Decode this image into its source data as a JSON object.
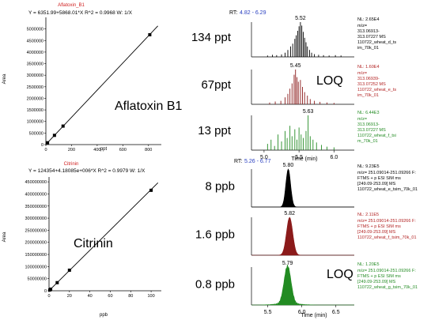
{
  "chart_data": [
    {
      "type": "scatter",
      "compound_label": "Aflatoxin B1",
      "title": "Aflatoxin_B1",
      "equation": "Y = 6351.99+5868.01*X   R^2 = 0.9968   W: 1/X",
      "xlabel": "ppt",
      "ylabel": "Area",
      "xlim": [
        0,
        900
      ],
      "ylim": [
        0,
        5500000
      ],
      "xticks": [
        "0",
        "200",
        "400",
        "600",
        "800"
      ],
      "yticks": [
        "0",
        "500000",
        "1000000",
        "1500000",
        "2000000",
        "2500000",
        "3000000",
        "3500000",
        "4000000",
        "4500000",
        "5000000"
      ],
      "points": [
        {
          "x": 13,
          "y": 80000
        },
        {
          "x": 67,
          "y": 400000
        },
        {
          "x": 134,
          "y": 800000
        },
        {
          "x": 810,
          "y": 4750000
        }
      ],
      "fit": {
        "intercept": 6351.99,
        "slope": 5868.01
      }
    },
    {
      "type": "scatter",
      "compound_label": "Citrinin",
      "title": "Citrinin",
      "equation": "Y = 124354+4.18085e+006*X   R^2 = 0.9979   W: 1/X",
      "xlabel": "ppb",
      "ylabel": "Area",
      "xlim": [
        0,
        110
      ],
      "ylim": [
        0,
        470000000
      ],
      "xticks": [
        "0",
        "20",
        "40",
        "60",
        "80",
        "100"
      ],
      "yticks": [
        "0",
        "50000000",
        "100000000",
        "150000000",
        "200000000",
        "250000000",
        "300000000",
        "350000000",
        "400000000",
        "450000000"
      ],
      "points": [
        {
          "x": 0.8,
          "y": 3300000
        },
        {
          "x": 1.6,
          "y": 6700000
        },
        {
          "x": 8,
          "y": 33500000
        },
        {
          "x": 20,
          "y": 85000000
        },
        {
          "x": 100,
          "y": 415000000
        }
      ],
      "fit": {
        "intercept": 124354,
        "slope": 4180850
      }
    },
    {
      "type": "line",
      "rt_prefix": "RT: ",
      "rt_range": "4.82 - 6.29",
      "xlim": [
        4.82,
        6.29
      ],
      "xticks": [
        5.0,
        5.5,
        6.0
      ],
      "xlabel": "Time (min)",
      "loq_text": "LOQ",
      "series": [
        {
          "name": "134 ppt",
          "color": "#000000",
          "peak_rt": "5.52",
          "peak_x": 5.52,
          "nl": "NL: 2.65E4",
          "info": [
            "m/z=",
            "313.06913-",
            "313.07227  MS",
            "110722_wheat_d_ts",
            "im_70k_01"
          ],
          "info_color": "#000000",
          "sticks": [
            [
              5.05,
              0.04
            ],
            [
              5.12,
              0.06
            ],
            [
              5.18,
              0.05
            ],
            [
              5.25,
              0.07
            ],
            [
              5.3,
              0.12
            ],
            [
              5.34,
              0.2
            ],
            [
              5.38,
              0.3
            ],
            [
              5.41,
              0.38
            ],
            [
              5.44,
              0.52
            ],
            [
              5.46,
              0.62
            ],
            [
              5.48,
              0.75
            ],
            [
              5.5,
              0.88
            ],
            [
              5.52,
              1.0
            ],
            [
              5.54,
              0.9
            ],
            [
              5.56,
              0.72
            ],
            [
              5.58,
              0.55
            ],
            [
              5.6,
              0.42
            ],
            [
              5.62,
              0.3
            ],
            [
              5.65,
              0.2
            ],
            [
              5.68,
              0.12
            ],
            [
              5.72,
              0.08
            ],
            [
              5.78,
              0.06
            ],
            [
              5.85,
              0.05
            ],
            [
              5.93,
              0.04
            ],
            [
              6.02,
              0.05
            ],
            [
              6.1,
              0.04
            ]
          ]
        },
        {
          "name": "67ppt",
          "color": "#8b1a1a",
          "peak_rt": "5.45",
          "peak_x": 5.45,
          "nl": "NL: 1.60E4",
          "info": [
            "m/z=",
            "313.06939-",
            "313.07252  MS",
            "110722_wheat_e_ts",
            "im_70k_01"
          ],
          "info_color": "#b22222",
          "sticks": [
            [
              5.08,
              0.05
            ],
            [
              5.16,
              0.08
            ],
            [
              5.24,
              0.1
            ],
            [
              5.3,
              0.2
            ],
            [
              5.34,
              0.3
            ],
            [
              5.37,
              0.45
            ],
            [
              5.4,
              0.6
            ],
            [
              5.43,
              0.85
            ],
            [
              5.45,
              1.0
            ],
            [
              5.47,
              0.78
            ],
            [
              5.49,
              0.65
            ],
            [
              5.52,
              0.7
            ],
            [
              5.55,
              0.5
            ],
            [
              5.58,
              0.35
            ],
            [
              5.62,
              0.25
            ],
            [
              5.66,
              0.15
            ],
            [
              5.72,
              0.1
            ],
            [
              5.8,
              0.07
            ],
            [
              5.9,
              0.05
            ],
            [
              6.0,
              0.04
            ]
          ]
        },
        {
          "name": "13 ppt",
          "color": "#228b22",
          "peak_rt": "5.63",
          "peak_x": 5.63,
          "nl": "NL: 6.44E3",
          "info": [
            "m/z=",
            "313.06913-",
            "313.07227  MS",
            "110722_wheat_f_tsi",
            "m_70k_01"
          ],
          "info_color": "#228b22",
          "sticks": [
            [
              5.05,
              0.18
            ],
            [
              5.1,
              0.3
            ],
            [
              5.15,
              0.12
            ],
            [
              5.2,
              0.45
            ],
            [
              5.25,
              0.25
            ],
            [
              5.3,
              0.55
            ],
            [
              5.33,
              0.35
            ],
            [
              5.37,
              0.7
            ],
            [
              5.4,
              0.4
            ],
            [
              5.44,
              0.6
            ],
            [
              5.47,
              0.3
            ],
            [
              5.5,
              0.65
            ],
            [
              5.53,
              0.45
            ],
            [
              5.56,
              0.35
            ],
            [
              5.6,
              0.55
            ],
            [
              5.63,
              1.0
            ],
            [
              5.66,
              0.4
            ],
            [
              5.7,
              0.3
            ],
            [
              5.75,
              0.22
            ],
            [
              5.82,
              0.15
            ],
            [
              5.9,
              0.1
            ],
            [
              6.0,
              0.08
            ]
          ]
        }
      ]
    },
    {
      "type": "area",
      "rt_prefix": "RT: ",
      "rt_range": "5.26 - 6.77",
      "xlim": [
        5.26,
        6.77
      ],
      "xticks": [
        5.5,
        6.0,
        6.5
      ],
      "xlabel": "Time (min)",
      "loq_text": "LOQ",
      "series": [
        {
          "name": "8 ppb",
          "color": "#000000",
          "peak_rt": "5.80",
          "peak_x": 5.8,
          "sigma": 0.035,
          "nl": "NL: 9.23E5",
          "info": [
            "m/z= 251.09014-251.09266 F:",
            "FTMS + p ESI SIM ms",
            "[249.09-253.09]  MS",
            "110722_wheat_e_tsim_70k_01"
          ],
          "info_color": "#000000"
        },
        {
          "name": "1.6 ppb",
          "color": "#8b1a1a",
          "peak_rt": "5.82",
          "peak_x": 5.82,
          "sigma": 0.045,
          "nl": "NL: 2.11E5",
          "info": [
            "m/z= 251.09014-251.09266 F:",
            "FTMS + p ESI SIM ms",
            "[249.09-253.09]  MS",
            "110722_wheat_f_tsim_70k_01"
          ],
          "info_color": "#b22222"
        },
        {
          "name": "0.8 ppb",
          "color": "#228b22",
          "peak_rt": "5.79",
          "peak_x": 5.79,
          "sigma": 0.05,
          "nl": "NL: 1.20E5",
          "info": [
            "m/z= 251.09014-251.09266 F:",
            "FTMS + p ESI SIM ms",
            "[249.09-253.09]  MS",
            "110722_wheat_g_tsim_70k_01"
          ],
          "info_color": "#228b22"
        }
      ]
    }
  ]
}
